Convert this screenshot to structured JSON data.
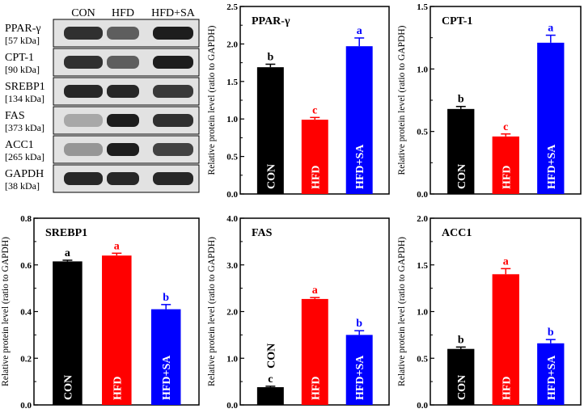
{
  "western_blot": {
    "lane_labels": [
      "CON",
      "HFD",
      "HFD+SA"
    ],
    "proteins": [
      {
        "name": "PPAR-γ",
        "size": "[57 kDa]",
        "intensity": [
          0.85,
          0.6,
          0.95
        ]
      },
      {
        "name": "CPT-1",
        "size": "[90 kDa]",
        "intensity": [
          0.85,
          0.6,
          0.95
        ]
      },
      {
        "name": "SREBP1",
        "size": "[134 kDa]",
        "intensity": [
          0.9,
          0.9,
          0.8
        ]
      },
      {
        "name": "FAS",
        "size": "[373 kDa]",
        "intensity": [
          0.2,
          0.95,
          0.85
        ]
      },
      {
        "name": "ACC1",
        "size": "[265 kDa]",
        "intensity": [
          0.3,
          0.95,
          0.75
        ]
      },
      {
        "name": "GAPDH",
        "size": "[38 kDa]",
        "intensity": [
          0.9,
          0.9,
          0.9
        ]
      }
    ]
  },
  "colors": {
    "CON": "#000000",
    "HFD": "#ff0000",
    "HFD+SA": "#0000ff"
  },
  "chart_data": [
    {
      "type": "bar",
      "title": "PPAR-γ",
      "ylabel": "Relative protein level  (ratio to GAPDH)",
      "categories": [
        "CON",
        "HFD",
        "HFD+SA"
      ],
      "values": [
        1.69,
        0.99,
        1.97
      ],
      "errors": [
        0.04,
        0.03,
        0.11
      ],
      "sig": [
        "b",
        "c",
        "a"
      ],
      "ylim": [
        0,
        2.5
      ],
      "yticks": [
        "0.0",
        "0.5",
        "1.0",
        "1.5",
        "2.0",
        "2.5"
      ]
    },
    {
      "type": "bar",
      "title": "CPT-1",
      "ylabel": "Relative protein level  (ratio to GAPDH)",
      "categories": [
        "CON",
        "HFD",
        "HFD+SA"
      ],
      "values": [
        0.68,
        0.46,
        1.21
      ],
      "errors": [
        0.02,
        0.02,
        0.06
      ],
      "sig": [
        "b",
        "c",
        "a"
      ],
      "ylim": [
        0,
        1.5
      ],
      "yticks": [
        "0.0",
        "0.5",
        "1.0",
        "1.5"
      ]
    },
    {
      "type": "bar",
      "title": "SREBP1",
      "ylabel": "Relative protein level  (ratio to GAPDH)",
      "categories": [
        "CON",
        "HFD",
        "HFD+SA"
      ],
      "values": [
        0.615,
        0.64,
        0.41
      ],
      "errors": [
        0.005,
        0.01,
        0.02
      ],
      "sig": [
        "a",
        "a",
        "b"
      ],
      "ylim": [
        0,
        0.8
      ],
      "yticks": [
        "0.0",
        "0.2",
        "0.4",
        "0.6",
        "0.8"
      ]
    },
    {
      "type": "bar",
      "title": "FAS",
      "ylabel": "Relative protein level  (ratio to GAPDH)",
      "categories": [
        "CON",
        "HFD",
        "HFD+SA"
      ],
      "values": [
        0.38,
        2.27,
        1.5
      ],
      "errors": [
        0.02,
        0.03,
        0.09
      ],
      "sig": [
        "c",
        "a",
        "b"
      ],
      "ylim": [
        0,
        4.0
      ],
      "yticks": [
        "0.0",
        "1.0",
        "2.0",
        "3.0",
        "4.0"
      ]
    },
    {
      "type": "bar",
      "title": "ACC1",
      "ylabel": "Relative protein level  (ratio to GAPDH)",
      "categories": [
        "CON",
        "HFD",
        "HFD+SA"
      ],
      "values": [
        0.6,
        1.4,
        0.66
      ],
      "errors": [
        0.02,
        0.06,
        0.04
      ],
      "sig": [
        "b",
        "a",
        "b"
      ],
      "ylim": [
        0,
        2.0
      ],
      "yticks": [
        "0.0",
        "0.5",
        "1.0",
        "1.5",
        "2.0"
      ]
    }
  ]
}
